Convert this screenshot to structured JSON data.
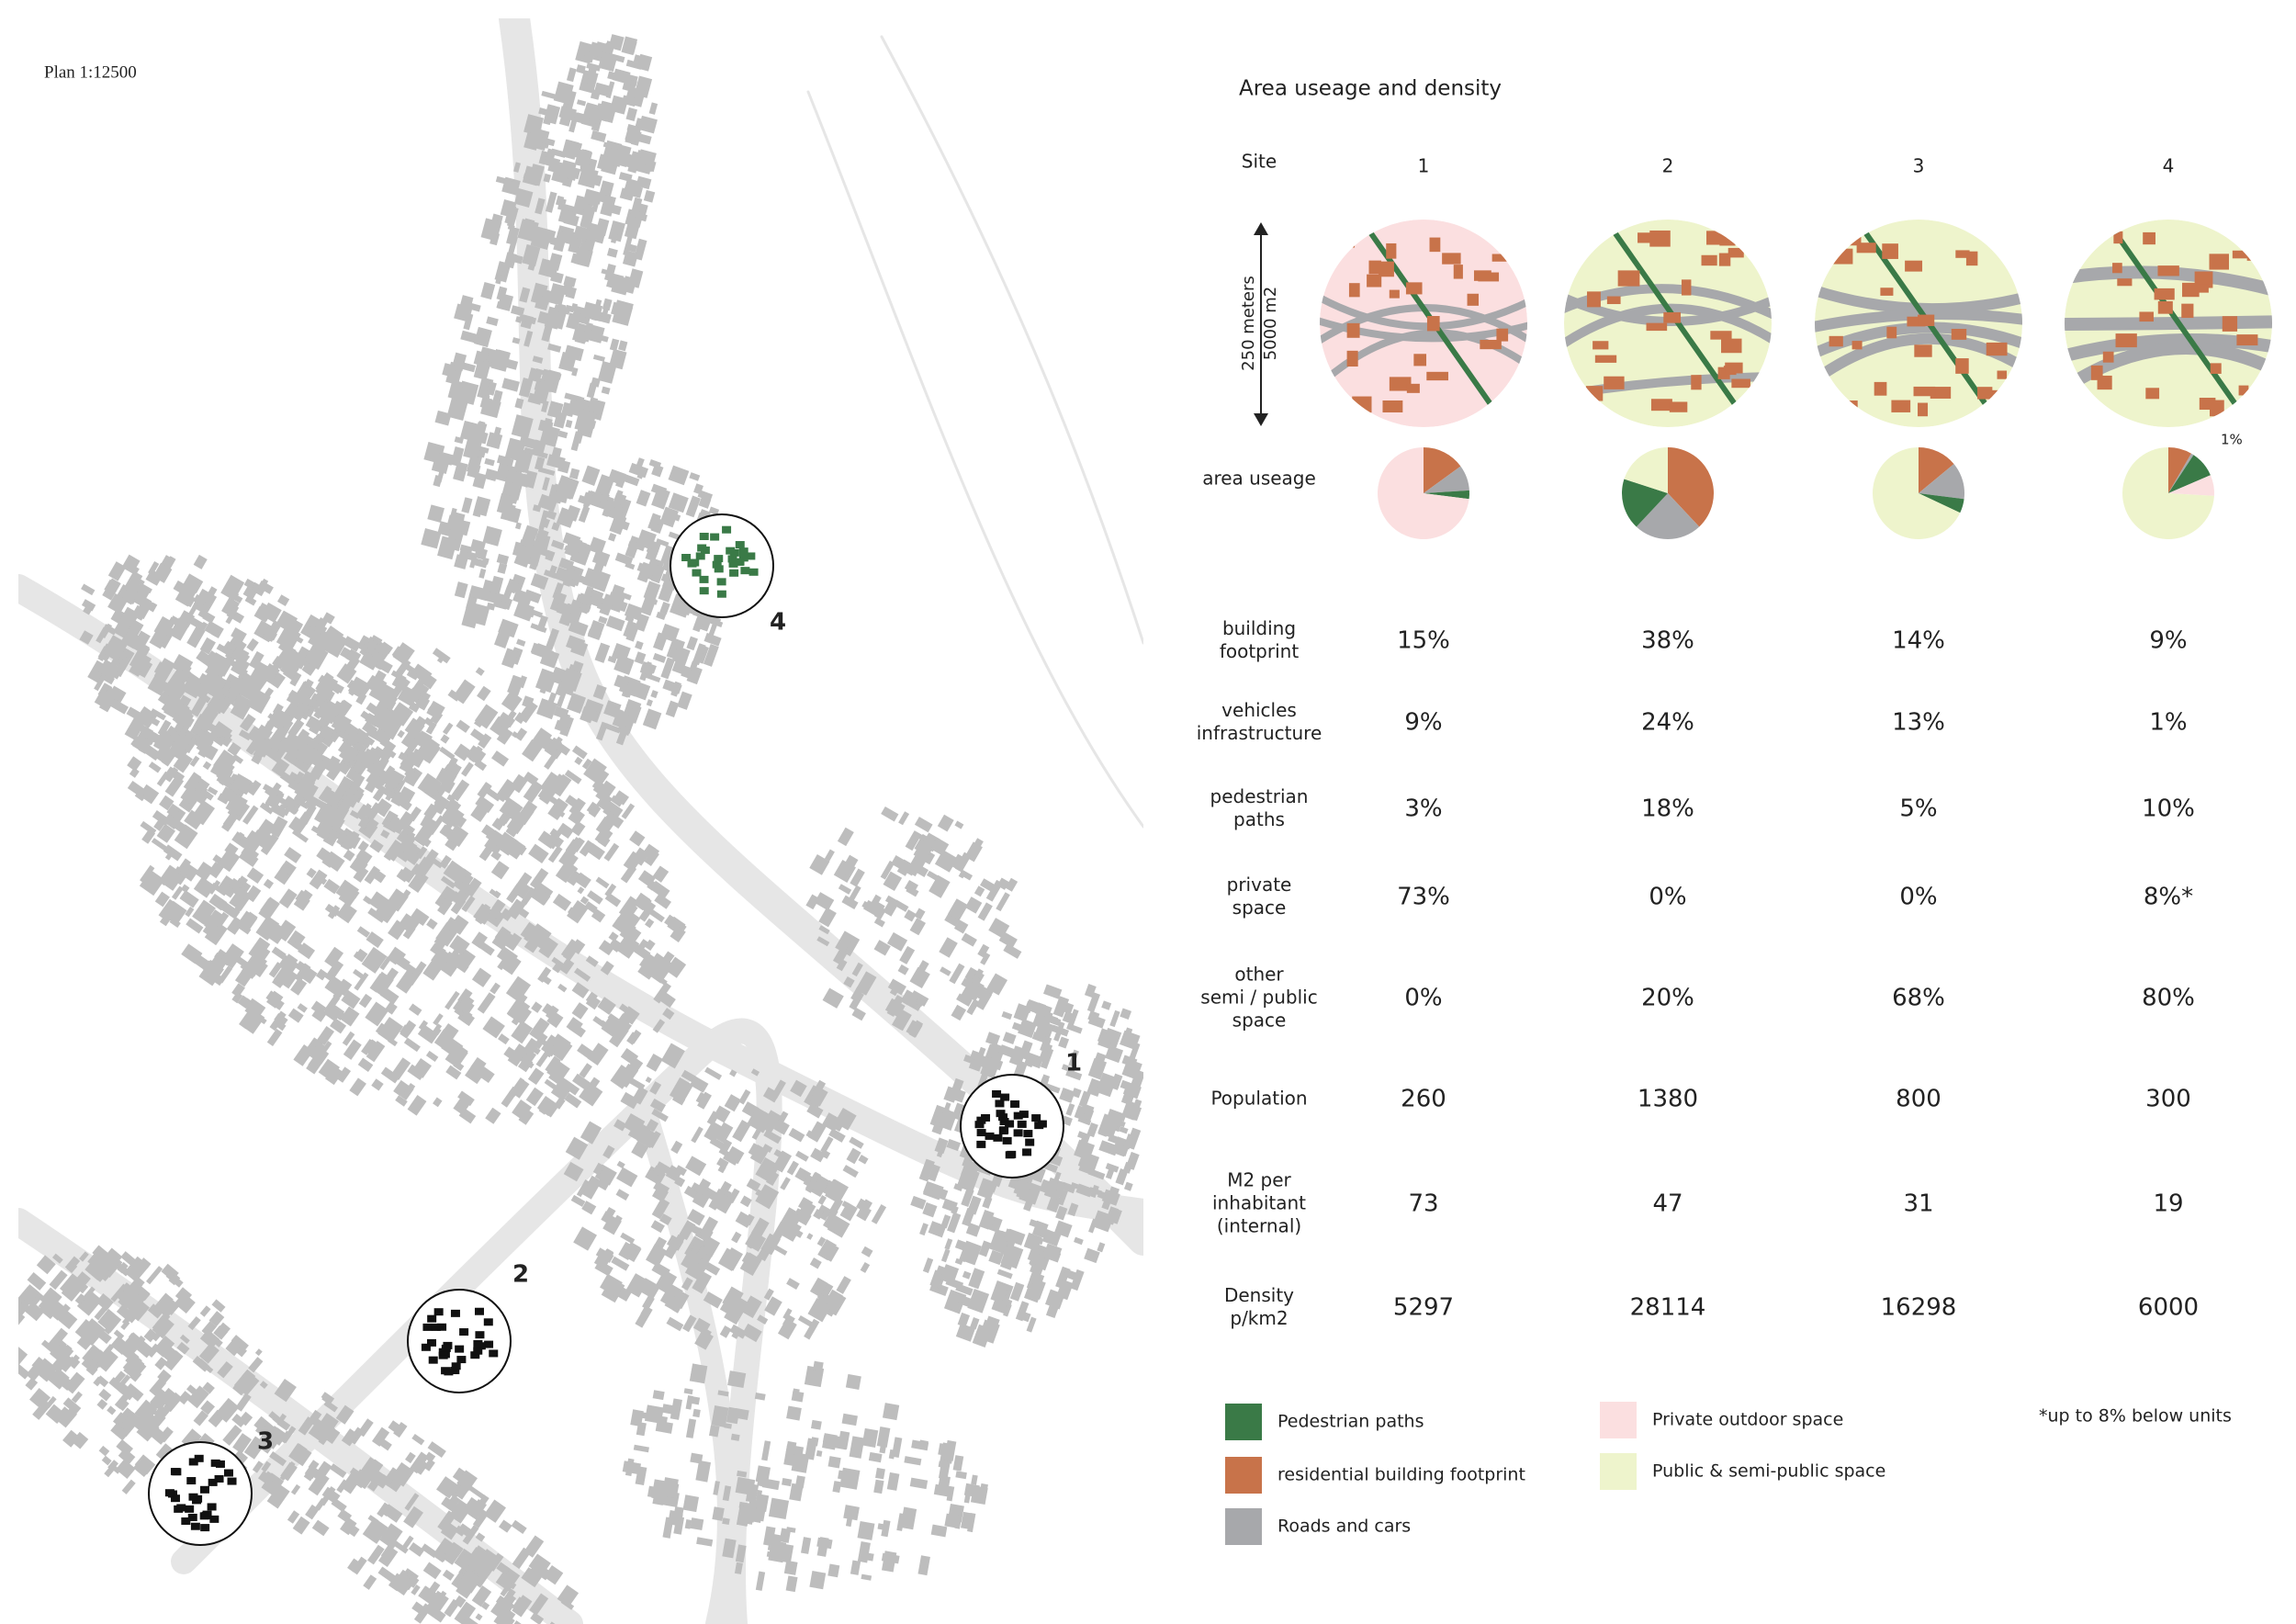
{
  "map": {
    "scale_label": "Plan 1:12500",
    "site_markers": [
      "1",
      "2",
      "3",
      "4"
    ]
  },
  "title": "Area useage and density",
  "site_header": "Site",
  "sites": [
    "1",
    "2",
    "3",
    "4"
  ],
  "scale_bar": {
    "lines": [
      "250 meters",
      "5000 m2"
    ]
  },
  "area_useage_label": "area useage",
  "pie_note": "1%",
  "usage": {
    "rows": [
      {
        "label": [
          "building",
          "footprint"
        ],
        "color": "#c8734a",
        "values": [
          15,
          38,
          14,
          9
        ],
        "value_labels": [
          "15%",
          "38%",
          "14%",
          "9%"
        ]
      },
      {
        "label": [
          "vehicles",
          "infrastructure"
        ],
        "color": "#a7a8ab",
        "values": [
          9,
          24,
          13,
          1
        ],
        "value_labels": [
          "9%",
          "24%",
          "13%",
          "1%"
        ]
      },
      {
        "label": [
          "pedestrian",
          "paths"
        ],
        "color": "#3a7a47",
        "values": [
          3,
          18,
          5,
          10
        ],
        "value_labels": [
          "3%",
          "18%",
          "5%",
          "10%"
        ]
      },
      {
        "label": [
          "private",
          "space"
        ],
        "color": "#fbdfe0",
        "values": [
          73,
          0,
          0,
          8
        ],
        "value_labels": [
          "73%",
          "0%",
          "0%",
          "8%*"
        ]
      },
      {
        "label": [
          "other",
          "semi / public",
          "space"
        ],
        "color": "#eef4cc",
        "values": [
          0,
          20,
          68,
          80
        ],
        "value_labels": [
          "0%",
          "20%",
          "68%",
          "80%"
        ]
      }
    ]
  },
  "stats": {
    "rows": [
      {
        "label": [
          "Population"
        ],
        "values": [
          260,
          1380,
          800,
          300
        ]
      },
      {
        "label": [
          "M2 per",
          "inhabitant",
          "(internal)"
        ],
        "values": [
          73,
          47,
          31,
          19
        ]
      },
      {
        "label": [
          "Density",
          "p/km2"
        ],
        "values": [
          5297,
          28114,
          16298,
          6000
        ]
      }
    ]
  },
  "legend": [
    "Pedestrian paths",
    "residential building footprint",
    "Roads and cars",
    "Private outdoor space",
    "Public & semi-public space"
  ],
  "footnote": "*up to 8% below units"
}
